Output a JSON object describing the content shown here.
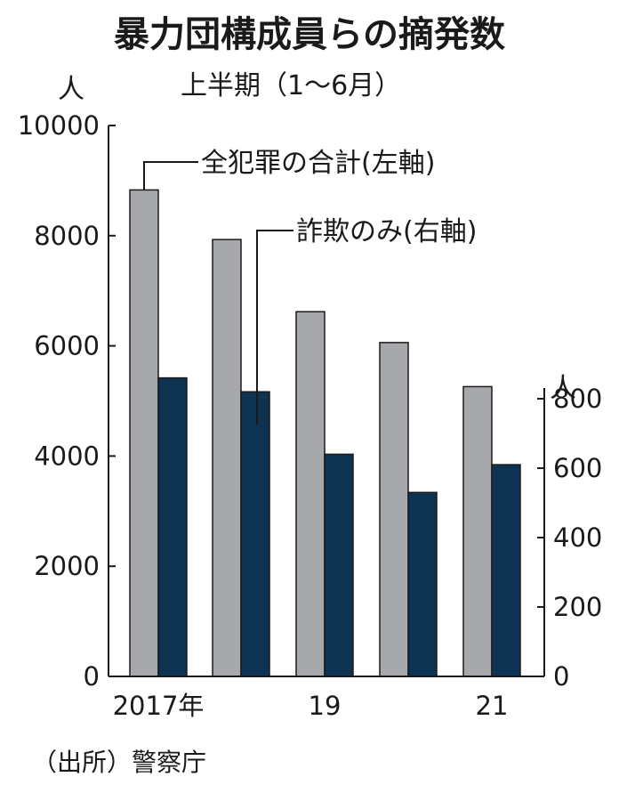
{
  "chart_data": {
    "type": "bar",
    "title": "暴力団構成員らの摘発数",
    "subtitle": "上半期（1〜6月）",
    "categories": [
      "2017年",
      "",
      "19",
      "",
      "21"
    ],
    "series": [
      {
        "name": "全犯罪の合計(左軸)",
        "axis": "left",
        "color": "#a6a8ab",
        "values": [
          8830,
          7930,
          6620,
          6060,
          5260
        ]
      },
      {
        "name": "詐欺のみ(右軸)",
        "axis": "right",
        "color": "#0e3352",
        "values": [
          860,
          820,
          640,
          530,
          610
        ]
      }
    ],
    "ylabel_left": "人",
    "ylabel_right": "人",
    "ylim_left": [
      0,
      10000
    ],
    "yticks_left": [
      "10000",
      "8000",
      "6000",
      "4000",
      "2000",
      "0"
    ],
    "ylim_right": [
      0,
      1000
    ],
    "yticks_right": [
      "800",
      "600",
      "400",
      "200",
      "0"
    ],
    "grid": false,
    "source": "（出所）警察庁"
  }
}
